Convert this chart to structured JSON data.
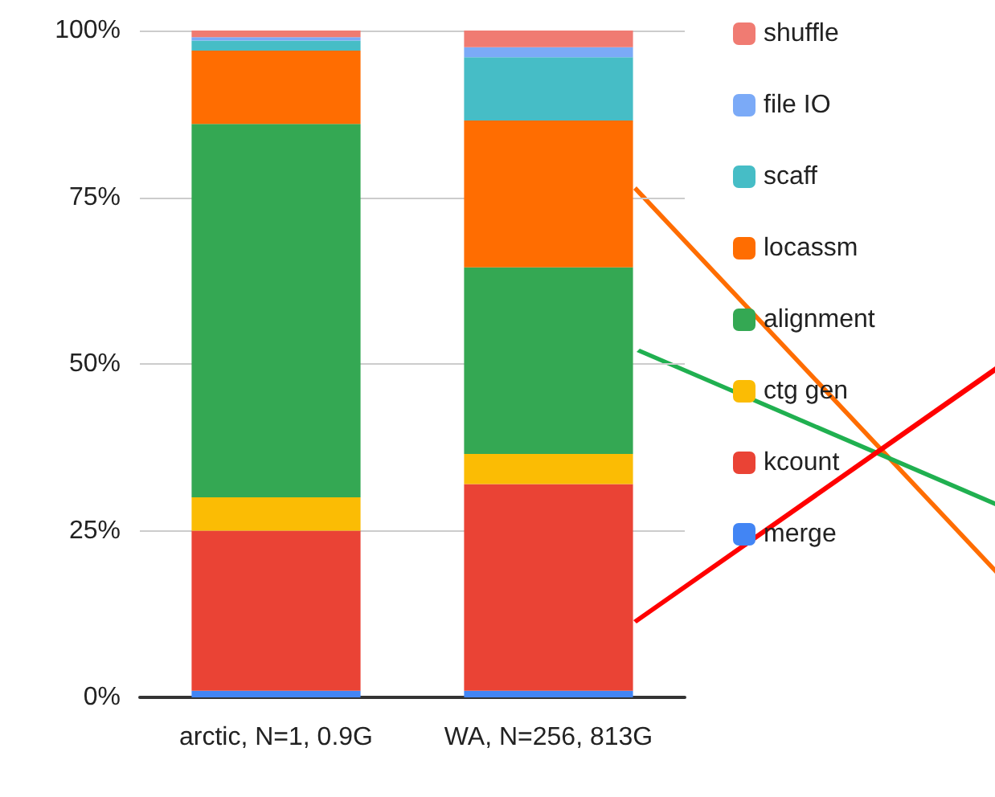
{
  "chart_data": {
    "type": "bar",
    "stacked": true,
    "categories": [
      "arctic, N=1, 0.9G",
      "WA, N=256, 813G"
    ],
    "series": [
      {
        "name": "merge",
        "color": "#4285f4",
        "values": [
          1,
          1
        ]
      },
      {
        "name": "kcount",
        "color": "#ea4335",
        "values": [
          24,
          31
        ]
      },
      {
        "name": "ctg gen",
        "color": "#fbbc04",
        "values": [
          5,
          4.5
        ]
      },
      {
        "name": "alignment",
        "color": "#34a853",
        "values": [
          56,
          28
        ]
      },
      {
        "name": "locassm",
        "color": "#ff6d01",
        "values": [
          11,
          22
        ]
      },
      {
        "name": "scaff",
        "color": "#46bdc6",
        "values": [
          1.5,
          9.5
        ]
      },
      {
        "name": "file IO",
        "color": "#7baaf7",
        "values": [
          0.5,
          1.5
        ]
      },
      {
        "name": "shuffle",
        "color": "#f07b72",
        "values": [
          1,
          2.5
        ]
      }
    ],
    "ylim": [
      0,
      100
    ],
    "yticks": [
      {
        "value": 0,
        "label": "0%"
      },
      {
        "value": 25,
        "label": "25%"
      },
      {
        "value": 50,
        "label": "50%"
      },
      {
        "value": 75,
        "label": "75%"
      },
      {
        "value": 100,
        "label": "100%"
      }
    ],
    "grid": "y",
    "legend": "right"
  }
}
